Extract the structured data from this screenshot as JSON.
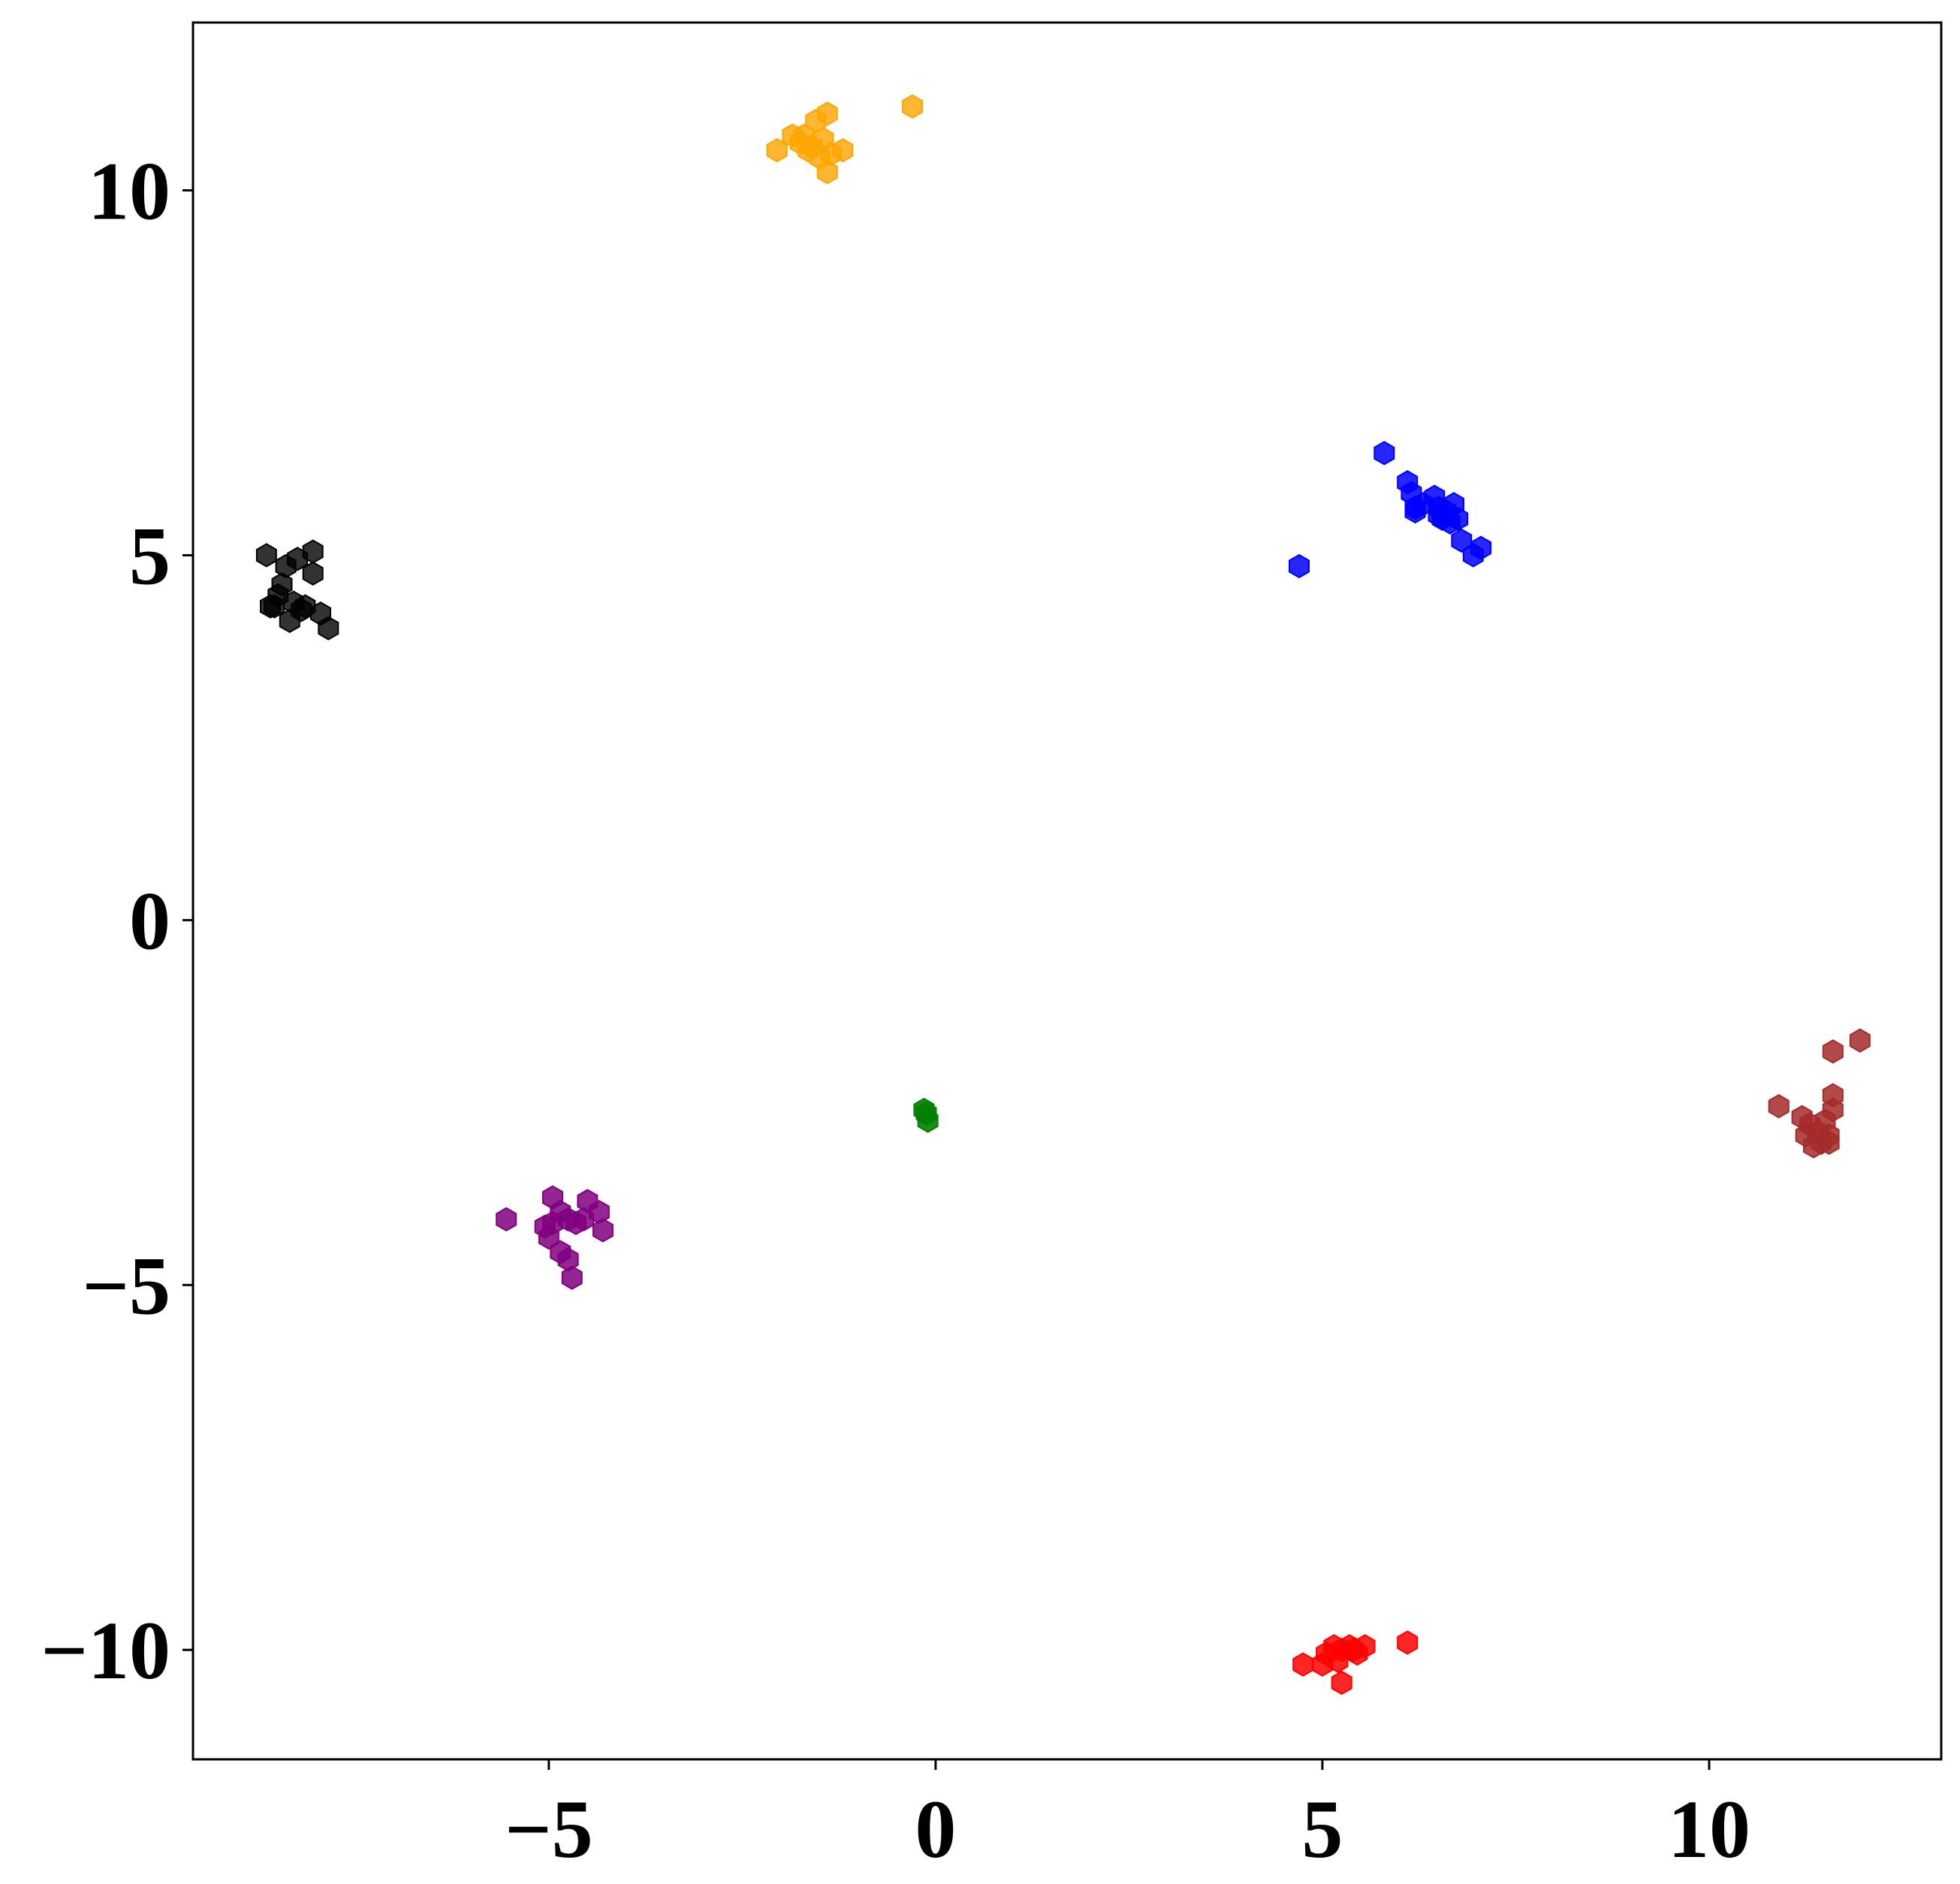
{
  "chart_data": {
    "type": "scatter",
    "marker": "hexagon",
    "title": "",
    "xlabel": "",
    "ylabel": "",
    "xlim": [
      -9.6,
      13.0
    ],
    "ylim": [
      -11.5,
      12.3
    ],
    "grid": false,
    "legend": "none",
    "x_ticks": [
      {
        "value": -5,
        "label": "−5"
      },
      {
        "value": 0,
        "label": "0"
      },
      {
        "value": 5,
        "label": "5"
      },
      {
        "value": 10,
        "label": "10"
      }
    ],
    "y_ticks": [
      {
        "value": 10,
        "label": "10"
      },
      {
        "value": 5,
        "label": "5"
      },
      {
        "value": 0,
        "label": "0"
      },
      {
        "value": -5,
        "label": "−5"
      },
      {
        "value": -10,
        "label": "−10"
      }
    ],
    "series": [
      {
        "color": "#ffa500",
        "x": [
          -0.3,
          -1.4,
          -1.55,
          -1.7,
          -1.85,
          -2.05,
          -1.5,
          -1.35,
          -1.2,
          -1.4,
          -1.75,
          -1.6,
          -1.45,
          -1.65
        ],
        "y": [
          11.15,
          11.05,
          10.95,
          10.75,
          10.75,
          10.55,
          10.45,
          10.5,
          10.55,
          10.25,
          10.65,
          10.6,
          10.7,
          10.55
        ],
        "alpha": 0.8
      },
      {
        "color": "#0000ff",
        "x": [
          5.8,
          6.1,
          6.15,
          6.2,
          6.3,
          6.45,
          6.5,
          6.55,
          6.6,
          6.7,
          6.75,
          6.8,
          6.95,
          7.05,
          4.7,
          6.65,
          6.2,
          6.5
        ],
        "y": [
          6.4,
          6.0,
          5.85,
          5.6,
          5.7,
          5.8,
          5.65,
          5.5,
          5.6,
          5.7,
          5.5,
          5.2,
          5.0,
          5.1,
          4.85,
          5.45,
          5.65,
          5.55
        ],
        "alpha": 0.85
      },
      {
        "color": "#000000",
        "x": [
          -8.65,
          -8.4,
          -8.25,
          -8.05,
          -8.45,
          -8.5,
          -8.3,
          -8.55,
          -8.2,
          -7.95,
          -7.85,
          -8.6,
          -8.35,
          -8.15,
          -8.05
        ],
        "y": [
          5.0,
          4.85,
          4.95,
          5.05,
          4.6,
          4.45,
          4.35,
          4.3,
          4.25,
          4.2,
          4.0,
          4.3,
          4.1,
          4.3,
          4.75
        ],
        "alpha": 0.8
      },
      {
        "color": "#008000",
        "x": [
          -0.15,
          -0.1,
          -0.12
        ],
        "y": [
          -2.6,
          -2.75,
          -2.65
        ],
        "alpha": 0.9
      },
      {
        "color": "#800080",
        "x": [
          -5.55,
          -5.05,
          -4.95,
          -4.85,
          -4.75,
          -4.65,
          -4.5,
          -4.35,
          -4.3,
          -5.0,
          -4.85,
          -4.75,
          -4.7,
          -4.95,
          -4.55
        ],
        "y": [
          -4.1,
          -4.2,
          -3.8,
          -4.0,
          -4.1,
          -4.15,
          -3.85,
          -4.0,
          -4.25,
          -4.35,
          -4.55,
          -4.65,
          -4.9,
          -4.15,
          -4.1
        ],
        "alpha": 0.85
      },
      {
        "color": "#a52a2a",
        "x": [
          11.95,
          11.6,
          10.9,
          11.2,
          11.3,
          11.4,
          11.5,
          11.55,
          11.6,
          11.25,
          11.45,
          11.55,
          11.35,
          11.6
        ],
        "y": [
          -1.65,
          -1.8,
          -2.55,
          -2.7,
          -2.8,
          -2.9,
          -2.75,
          -2.95,
          -2.4,
          -2.95,
          -3.05,
          -3.05,
          -3.1,
          -2.6
        ],
        "alpha": 0.85
      },
      {
        "color": "#ff0000",
        "x": [
          6.1,
          5.55,
          5.45,
          5.35,
          5.25,
          5.15,
          5.05,
          4.75,
          5.2,
          5.4,
          5.25,
          5.0
        ],
        "y": [
          -9.9,
          -9.95,
          -10.05,
          -9.95,
          -10.0,
          -9.95,
          -10.05,
          -10.2,
          -10.15,
          -10.0,
          -10.45,
          -10.2
        ],
        "alpha": 0.85
      }
    ]
  }
}
